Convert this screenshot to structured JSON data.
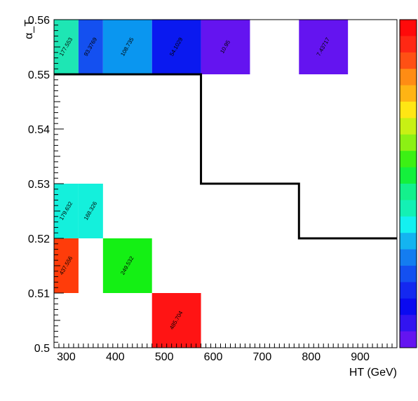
{
  "chart_data": {
    "type": "heatmap",
    "xlabel": "HT (GeV)",
    "ylabel": "α_T",
    "xlim": [
      275,
      975
    ],
    "ylim": [
      0.5,
      0.56
    ],
    "x_ticks": [
      300,
      400,
      500,
      600,
      700,
      800,
      900
    ],
    "x_tick_labels": [
      "300",
      "400",
      "500",
      "600",
      "700",
      "800",
      "900"
    ],
    "y_ticks": [
      0.5,
      0.51,
      0.52,
      0.53,
      0.54,
      0.55,
      0.56
    ],
    "y_tick_labels": [
      "0.5",
      "0.51",
      "0.52",
      "0.53",
      "0.54",
      "0.55",
      "0.56"
    ],
    "x_bin_edges": [
      275,
      325,
      375,
      475,
      575,
      675,
      775,
      875,
      975
    ],
    "y_bin_edges": [
      0.5,
      0.51,
      0.52,
      0.53,
      0.54,
      0.55,
      0.56
    ],
    "color_range": [
      0,
      500
    ],
    "cells": [
      {
        "x_bin": 0,
        "y_bin": 5,
        "value": 177.553,
        "label": "177.553",
        "color": "#1ee6b4"
      },
      {
        "x_bin": 1,
        "y_bin": 5,
        "value": 93.3769,
        "label": "93.3769",
        "color": "#1450f0"
      },
      {
        "x_bin": 2,
        "y_bin": 5,
        "value": 108.735,
        "label": "108.735",
        "color": "#0a96f0"
      },
      {
        "x_bin": 3,
        "y_bin": 5,
        "value": 54.1029,
        "label": "54.1029",
        "color": "#0a19f0"
      },
      {
        "x_bin": 4,
        "y_bin": 5,
        "value": 10.95,
        "label": "10.95",
        "color": "#6414f0"
      },
      {
        "x_bin": 6,
        "y_bin": 5,
        "value": 7.43717,
        "label": "7.43717",
        "color": "#6414f0"
      },
      {
        "x_bin": 0,
        "y_bin": 2,
        "value": 179.632,
        "label": "179.632",
        "color": "#14f0dc"
      },
      {
        "x_bin": 1,
        "y_bin": 2,
        "value": 168.326,
        "label": "168.326",
        "color": "#14f0dc"
      },
      {
        "x_bin": 0,
        "y_bin": 1,
        "value": 437.556,
        "label": "437.556",
        "color": "#ff3c0a"
      },
      {
        "x_bin": 2,
        "y_bin": 1,
        "value": 249.532,
        "label": "249.532",
        "color": "#14f014"
      },
      {
        "x_bin": 3,
        "y_bin": 0,
        "value": 485.704,
        "label": "485.704",
        "color": "#ff1414"
      }
    ],
    "boundary_line": {
      "points": [
        [
          275,
          0.55
        ],
        [
          575,
          0.55
        ],
        [
          575,
          0.53
        ],
        [
          775,
          0.53
        ],
        [
          775,
          0.52
        ],
        [
          975,
          0.52
        ]
      ],
      "color": "#000000"
    },
    "palette": [
      "#ff0a0a",
      "#ff2814",
      "#ff5014",
      "#ff8c14",
      "#ffb414",
      "#ffe614",
      "#c8f014",
      "#8cf014",
      "#3cf014",
      "#14f03c",
      "#14f08c",
      "#14f0b4",
      "#14f0f0",
      "#14b4f0",
      "#147df0",
      "#1450f0",
      "#1428f0",
      "#0a0af0",
      "#3214f0",
      "#6414f0"
    ]
  }
}
